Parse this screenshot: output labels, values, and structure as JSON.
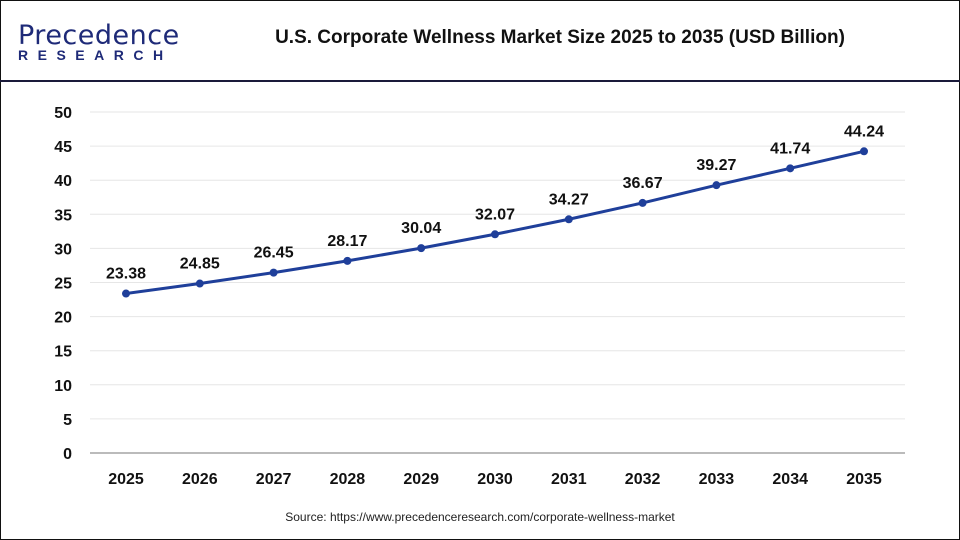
{
  "header": {
    "logo_top": "Precedence",
    "logo_bottom": "RESEARCH",
    "title": "U.S. Corporate Wellness Market Size 2025 to 2035 (USD Billion)"
  },
  "chart_data": {
    "type": "line",
    "title": "U.S. Corporate Wellness Market Size 2025 to 2035 (USD Billion)",
    "categories": [
      "2025",
      "2026",
      "2027",
      "2028",
      "2029",
      "2030",
      "2031",
      "2032",
      "2033",
      "2034",
      "2035"
    ],
    "values": [
      23.38,
      24.85,
      26.45,
      28.17,
      30.04,
      32.07,
      34.27,
      36.67,
      39.27,
      41.74,
      44.24
    ],
    "data_labels": [
      "23.38",
      "24.85",
      "26.45",
      "28.17",
      "30.04",
      "32.07",
      "34.27",
      "36.67",
      "39.27",
      "41.74",
      "44.24"
    ],
    "yticks": [
      "0",
      "5",
      "10",
      "15",
      "20",
      "25",
      "30",
      "35",
      "40",
      "45",
      "50"
    ],
    "ylim": [
      0,
      50
    ],
    "grid": true,
    "line_color": "#1f3f9a"
  },
  "footer": {
    "source": "Source: https://www.precedenceresearch.com/corporate-wellness-market"
  }
}
